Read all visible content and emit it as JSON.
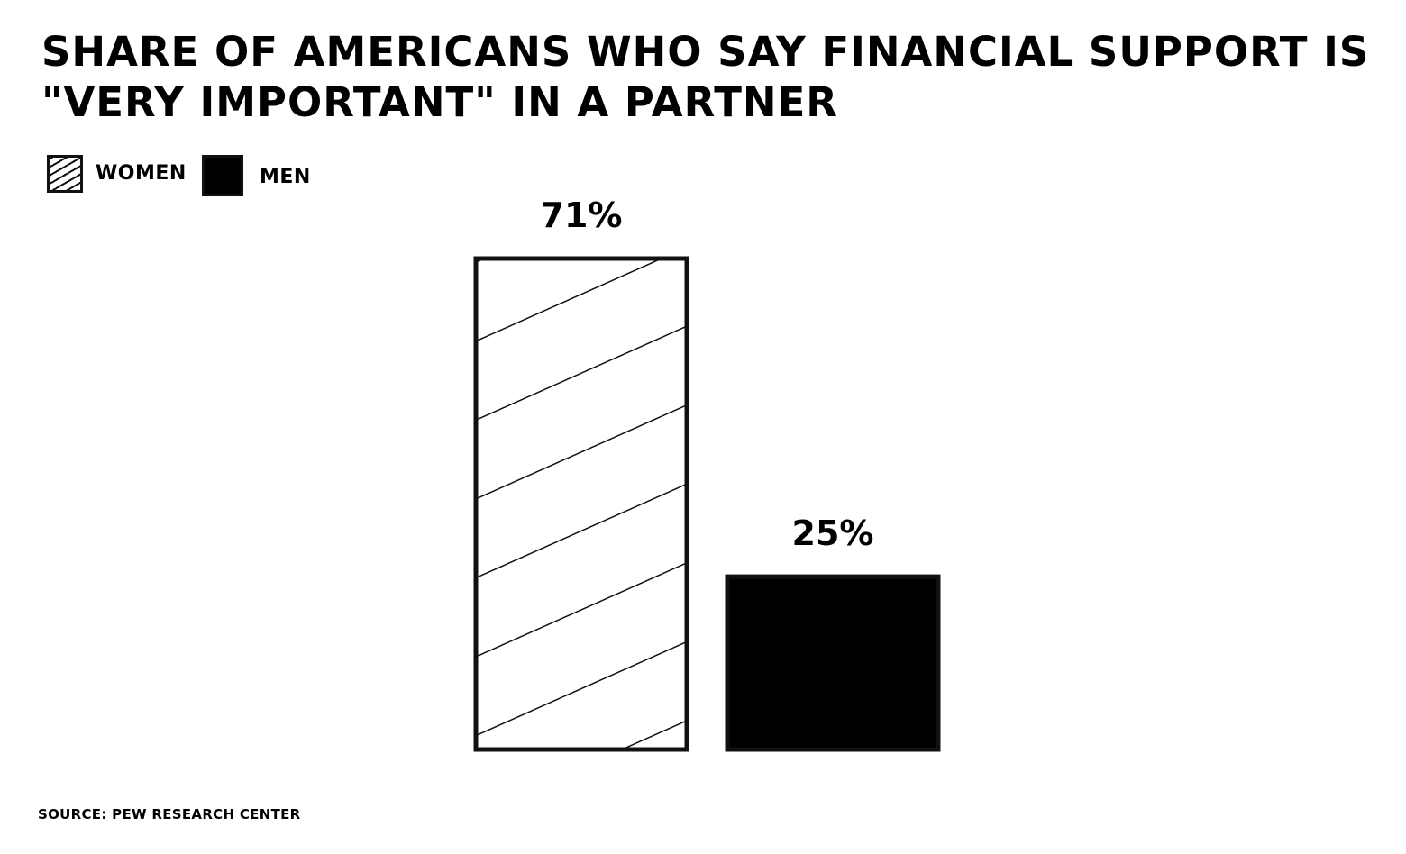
{
  "chart_data": {
    "type": "bar",
    "title": "Share of Americans who say financial support is \"very important\" in a partner",
    "categories": [
      "Women",
      "Men"
    ],
    "values": [
      71,
      25
    ],
    "value_labels": [
      "71%",
      "25%"
    ],
    "ylim": [
      0,
      100
    ],
    "grid": false,
    "legend": {
      "placement": "top-left",
      "entries": [
        {
          "label": "WOMEN",
          "fill": "hatched"
        },
        {
          "label": "MEN",
          "fill": "solid"
        }
      ]
    },
    "colors": {
      "women": "#ffffff",
      "men": "#000000",
      "outline": "#111111"
    }
  },
  "footer": {
    "source": "SOURCE: PEW RESEARCH CENTER"
  }
}
